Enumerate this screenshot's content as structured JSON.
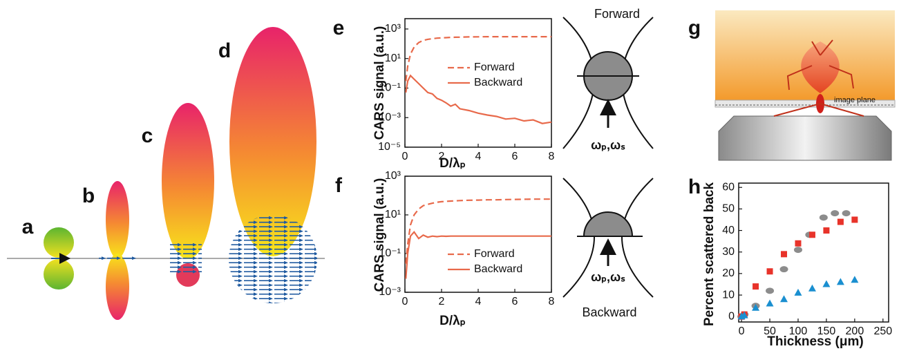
{
  "panels": {
    "labels": [
      "a",
      "b",
      "c",
      "d",
      "e",
      "f",
      "g",
      "h"
    ]
  },
  "diagrams": [
    {
      "title": "Forward",
      "beam": "ωₚ,ωₛ"
    },
    {
      "title": "Backward",
      "beam": "ωₚ,ωₛ"
    }
  ],
  "illustration": {
    "label": "image plane"
  },
  "chart_data": [
    {
      "type": "line",
      "x_label": "D/λₚ",
      "y_label": "CARS signal (a.u.)",
      "yscale": "log",
      "xlim": [
        0,
        8
      ],
      "xticks": [
        0,
        2,
        4,
        6,
        8
      ],
      "ylim": [
        1e-05,
        5000
      ],
      "yticks": [
        {
          "value": 1e-05,
          "label": "10⁻⁵"
        },
        {
          "value": 0.001,
          "label": "10⁻³"
        },
        {
          "value": 0.1,
          "label": "10⁻¹"
        },
        {
          "value": 10,
          "label": "10¹"
        },
        {
          "value": 1000,
          "label": "10³"
        }
      ],
      "legend": "center right",
      "x": [
        0.05,
        0.15,
        0.3,
        0.5,
        0.75,
        1,
        1.25,
        1.5,
        1.75,
        2,
        2.25,
        2.5,
        2.75,
        3,
        3.5,
        4,
        4.5,
        5,
        5.5,
        6,
        6.5,
        7,
        7.5,
        8
      ],
      "series": [
        {
          "name": "Forward",
          "color": "#e8694a",
          "line_style": "dashed",
          "values": [
            0.3,
            3,
            20,
            60,
            120,
            170,
            200,
            220,
            240,
            250,
            260,
            270,
            275,
            280,
            290,
            295,
            300,
            300,
            300,
            300,
            300,
            300,
            300,
            300
          ]
        },
        {
          "name": "Backward",
          "color": "#e8694a",
          "line_style": "solid",
          "values": [
            0.05,
            0.3,
            0.7,
            0.4,
            0.2,
            0.1,
            0.05,
            0.04,
            0.02,
            0.015,
            0.01,
            0.006,
            0.008,
            0.004,
            0.003,
            0.002,
            0.0015,
            0.0012,
            0.0008,
            0.0009,
            0.0006,
            0.0007,
            0.0004,
            0.0005
          ]
        }
      ]
    },
    {
      "type": "line",
      "x_label": "D/λₚ",
      "y_label": "CARS signal (a.u.)",
      "yscale": "log",
      "xlim": [
        0,
        8
      ],
      "xticks": [
        0,
        2,
        4,
        6,
        8
      ],
      "ylim": [
        0.001,
        1000
      ],
      "yticks": [
        {
          "value": 0.001,
          "label": "10⁻³"
        },
        {
          "value": 0.1,
          "label": "10⁻¹"
        },
        {
          "value": 10,
          "label": "10¹"
        },
        {
          "value": 1000,
          "label": "10³"
        }
      ],
      "legend": "lower right",
      "x": [
        0.05,
        0.15,
        0.3,
        0.5,
        0.75,
        1,
        1.25,
        1.5,
        1.75,
        2,
        2.25,
        2.5,
        2.75,
        3,
        3.5,
        4,
        4.5,
        5,
        5.5,
        6,
        6.5,
        7,
        7.5,
        8
      ],
      "series": [
        {
          "name": "Forward",
          "color": "#e8694a",
          "line_style": "dashed",
          "values": [
            0.03,
            0.3,
            3,
            10,
            20,
            30,
            35,
            40,
            45,
            48,
            50,
            52,
            53,
            55,
            57,
            58,
            60,
            60,
            62,
            63,
            64,
            65,
            65,
            65
          ]
        },
        {
          "name": "Backward",
          "color": "#e8694a",
          "line_style": "solid",
          "values": [
            0.005,
            0.1,
            0.8,
            1.3,
            0.6,
            0.9,
            0.7,
            0.8,
            0.75,
            0.8,
            0.78,
            0.8,
            0.8,
            0.8,
            0.8,
            0.8,
            0.8,
            0.8,
            0.8,
            0.8,
            0.8,
            0.8,
            0.8,
            0.8
          ]
        }
      ]
    },
    {
      "type": "scatter",
      "x_label": "Thickness (μm)",
      "y_label": "Percent scattered back",
      "xlim": [
        -5,
        260
      ],
      "xticks": [
        0,
        50,
        100,
        150,
        200,
        250
      ],
      "ylim": [
        -2.5,
        62
      ],
      "yticks": [
        0,
        10,
        20,
        30,
        40,
        50,
        60
      ],
      "series": [
        {
          "color": "#8c8c8c",
          "marker": "circle",
          "x": [
            0,
            5,
            25,
            50,
            75,
            100,
            120,
            145,
            165,
            185
          ],
          "values": [
            0,
            1,
            5,
            12,
            22,
            31,
            38,
            46,
            48,
            48
          ]
        },
        {
          "color": "#e8332a",
          "marker": "square",
          "x": [
            0,
            5,
            25,
            50,
            75,
            100,
            125,
            150,
            175,
            200
          ],
          "values": [
            0,
            1,
            14,
            21,
            29,
            34,
            38,
            40,
            44,
            45
          ]
        },
        {
          "color": "#1a8fd0",
          "marker": "triangle",
          "x": [
            0,
            5,
            25,
            50,
            75,
            100,
            125,
            150,
            175,
            200
          ],
          "values": [
            0,
            0.5,
            4,
            6,
            8,
            11,
            13,
            15,
            16,
            17
          ]
        }
      ]
    }
  ]
}
